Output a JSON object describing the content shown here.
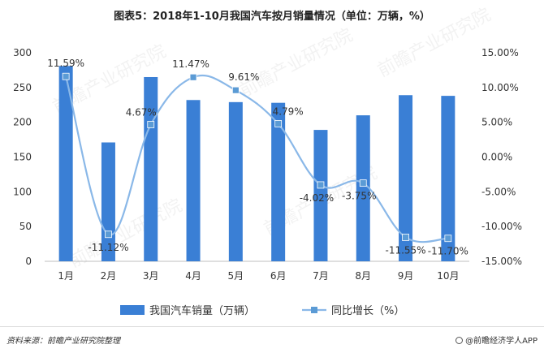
{
  "title": "图表5：2018年1-10月我国汽车按月销量情况（单位：万辆，%）",
  "source_label": "资料来源：前瞻产业研究院整理",
  "brand_label": "@前瞻经济学人APP",
  "watermark_text": "前瞻产业研究院",
  "colors": {
    "bar": "#3a7fd5",
    "line": "#8ab8e8",
    "marker": "#5b9bd5"
  },
  "chart_data": {
    "type": "bar",
    "title": "图表5：2018年1-10月我国汽车按月销量情况（单位：万辆，%）",
    "categories": [
      "1月",
      "2月",
      "3月",
      "4月",
      "5月",
      "6月",
      "7月",
      "8月",
      "9月",
      "10月"
    ],
    "series": [
      {
        "name": "我国汽车销量（万辆）",
        "type": "bar",
        "axis": "left",
        "values": [
          281,
          171,
          265,
          232,
          229,
          228,
          189,
          210,
          239,
          238
        ]
      },
      {
        "name": "同比增长（%）",
        "type": "line",
        "axis": "right",
        "values": [
          11.59,
          -11.12,
          4.67,
          11.47,
          9.61,
          4.79,
          -4.02,
          -3.75,
          -11.55,
          -11.7
        ],
        "labels": [
          "11.59%",
          "-11.12%",
          "4.67%",
          "11.47%",
          "9.61%",
          "4.79%",
          "-4.02%",
          "-3.75%",
          "-11.55%",
          "-11.70%"
        ]
      }
    ],
    "y_left": {
      "min": 0,
      "max": 300,
      "ticks": [
        0,
        50,
        100,
        150,
        200,
        250,
        300
      ]
    },
    "y_right": {
      "min": -15,
      "max": 15,
      "ticks": [
        -15,
        -10,
        -5,
        0,
        5,
        10,
        15
      ],
      "tick_labels": [
        "-15.00%",
        "-10.00%",
        "-5.00%",
        "0.00%",
        "5.00%",
        "10.00%",
        "15.00%"
      ]
    },
    "legend_position": "bottom",
    "grid": false
  }
}
